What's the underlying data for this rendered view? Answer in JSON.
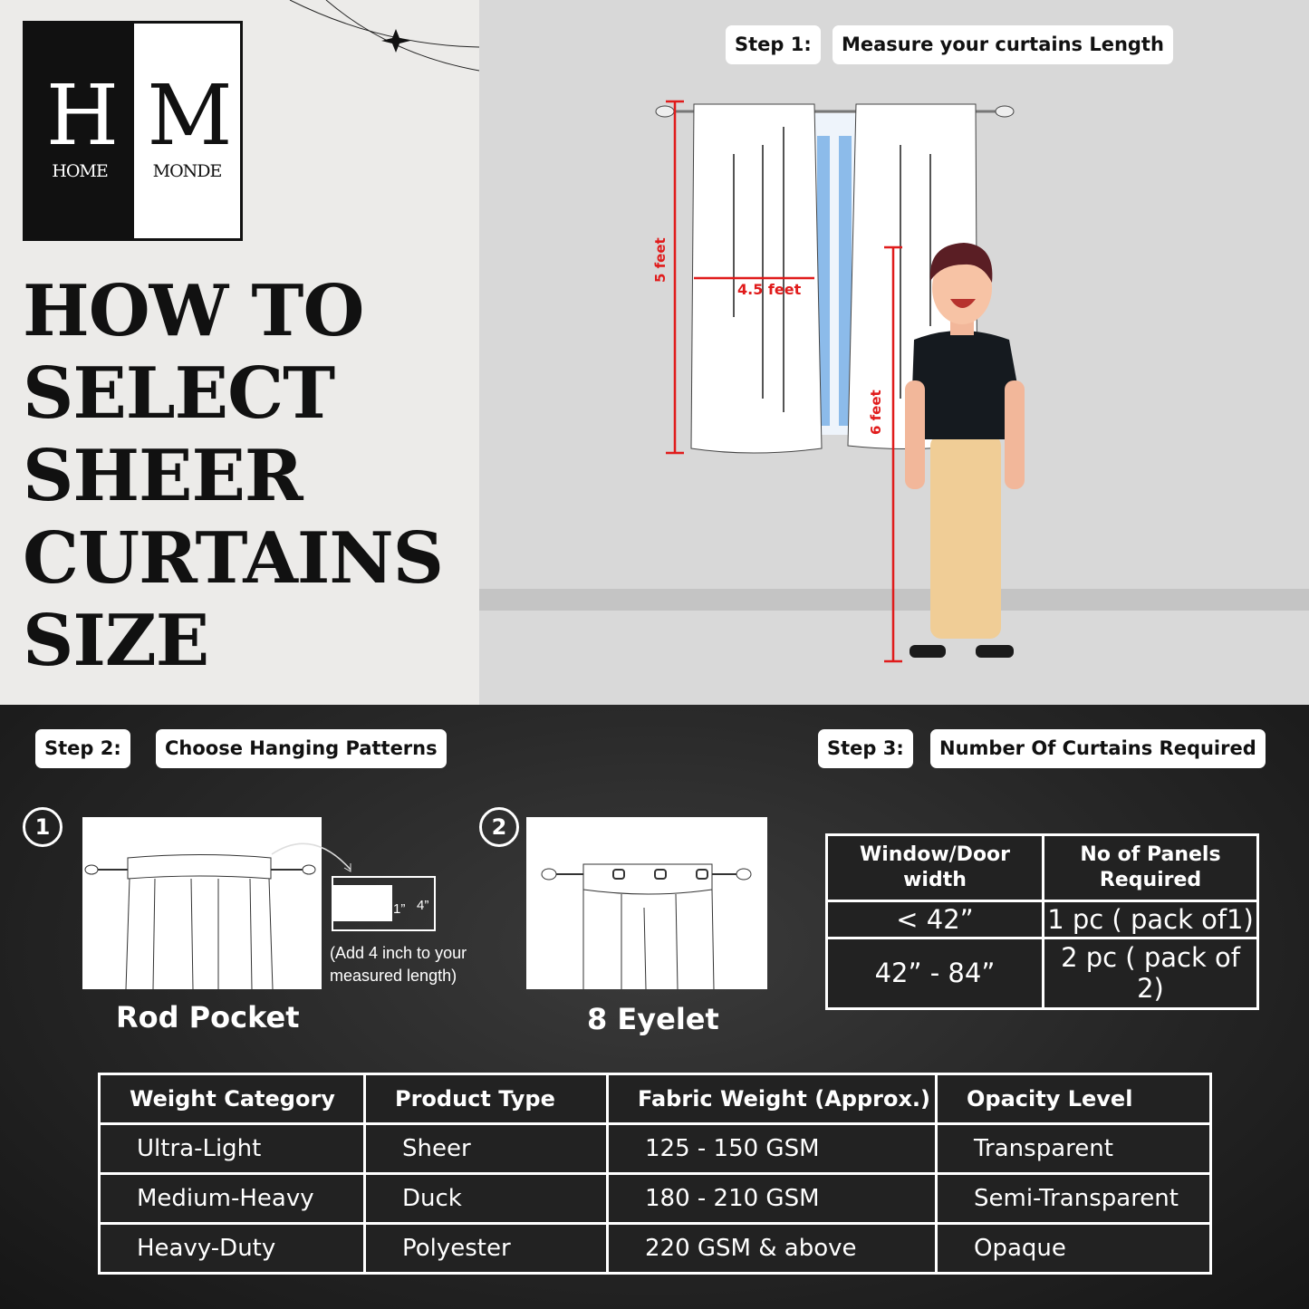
{
  "brand": {
    "monogram_left": "H",
    "monogram_right": "M",
    "name_left": "HOME",
    "name_right": "MONDE"
  },
  "title": [
    "HOW TO",
    "SELECT",
    "SHEER",
    "CURTAINS",
    "SIZE"
  ],
  "step1": {
    "label": "Step 1:",
    "text": "Measure your curtains Length",
    "measure_height": "5 feet",
    "measure_width": "4.5 feet",
    "person_height": "6 feet"
  },
  "step2": {
    "label": "Step 2:",
    "text": "Choose Hanging Patterns",
    "options": [
      {
        "number": "1",
        "name": "Rod Pocket",
        "detail_small": "1”",
        "detail_large": "4”",
        "note": "(Add 4 inch to your measured length)"
      },
      {
        "number": "2",
        "name": "8 Eyelet"
      }
    ]
  },
  "step3": {
    "label": "Step 3:",
    "text": "Number Of Curtains Required",
    "headers": [
      "Window/Door width",
      "No of Panels Required"
    ],
    "rows": [
      [
        "< 42”",
        "1 pc ( pack of1)"
      ],
      [
        "42” - 84”",
        "2 pc ( pack of 2)"
      ]
    ]
  },
  "weights": {
    "headers": [
      "Weight Category",
      "Product Type",
      "Fabric Weight (Approx.)",
      "Opacity Level"
    ],
    "rows": [
      [
        "Ultra-Light",
        "Sheer",
        "125 - 150 GSM",
        "Transparent"
      ],
      [
        "Medium-Heavy",
        "Duck",
        "180 - 210 GSM",
        "Semi-Transparent"
      ],
      [
        "Heavy-Duty",
        "Polyester",
        "220  GSM & above",
        "Opaque"
      ]
    ]
  },
  "colors": {
    "measure_red": "#e01b1b",
    "dark_bg": "#262626"
  }
}
